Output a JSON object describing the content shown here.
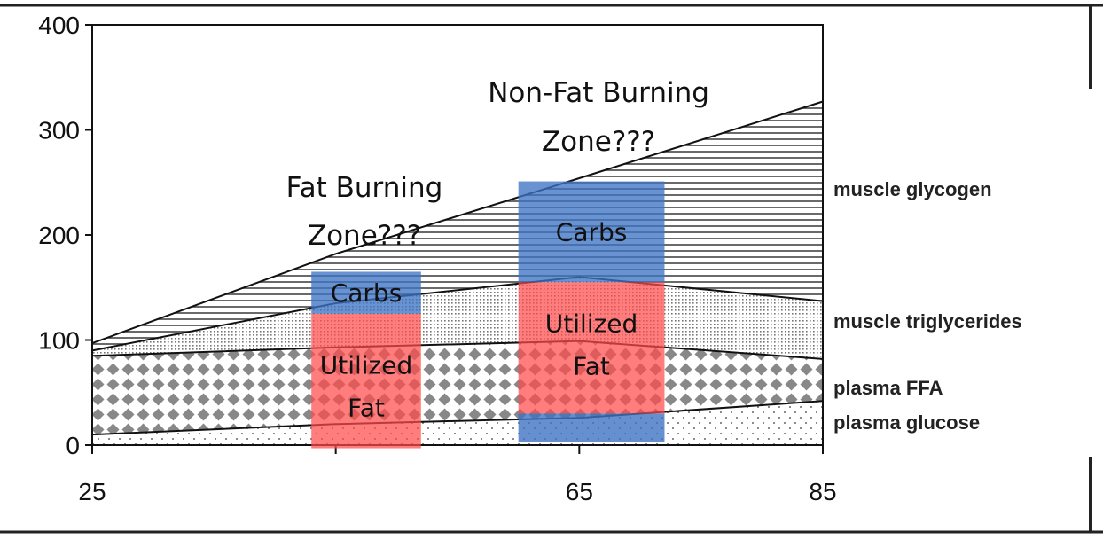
{
  "chart_data": {
    "type": "area",
    "x": [
      25,
      45,
      65,
      85
    ],
    "xticks": [
      25,
      65,
      85
    ],
    "yticks": [
      0,
      100,
      200,
      300,
      400
    ],
    "xlim": [
      25,
      85
    ],
    "ylim": [
      0,
      400
    ],
    "series": [
      {
        "name": "plasma glucose",
        "pattern": "dots-sparse",
        "values": [
          10,
          20,
          26,
          42
        ]
      },
      {
        "name": "plasma FFA",
        "pattern": "diamonds",
        "values": [
          85,
          93,
          99,
          82
        ]
      },
      {
        "name": "muscle triglycerides",
        "pattern": "dots-dense",
        "values": [
          90,
          135,
          160,
          137
        ]
      },
      {
        "name": "muscle glycogen",
        "pattern": "horizontal-lines",
        "values": [
          97,
          182,
          254,
          327
        ]
      }
    ],
    "annotations": [
      {
        "zone_lines": [
          "Fat Burning",
          "Zone???"
        ],
        "x_center": 45,
        "x_range": [
          43,
          52
        ],
        "carbs": {
          "label": "Carbs",
          "range": [
            125,
            165
          ]
        },
        "fat": {
          "label_lines": [
            "Utilized",
            "Fat"
          ],
          "range": [
            -3,
            125
          ]
        }
      },
      {
        "zone_lines": [
          "Non-Fat Burning",
          "Zone???"
        ],
        "x_center": 65,
        "x_range": [
          60,
          72
        ],
        "carbs": {
          "label": "Carbs",
          "range": [
            155,
            251
          ]
        },
        "fat": {
          "label_lines": [
            "Utilized",
            "Fat"
          ],
          "range": [
            30,
            155
          ]
        },
        "carbs_bottom": {
          "range": [
            3,
            30
          ]
        }
      }
    ],
    "colors": {
      "carbs": "#3f73c3",
      "fat": "#ff4b4b",
      "marker": "#666666",
      "axis": "#111111"
    }
  }
}
